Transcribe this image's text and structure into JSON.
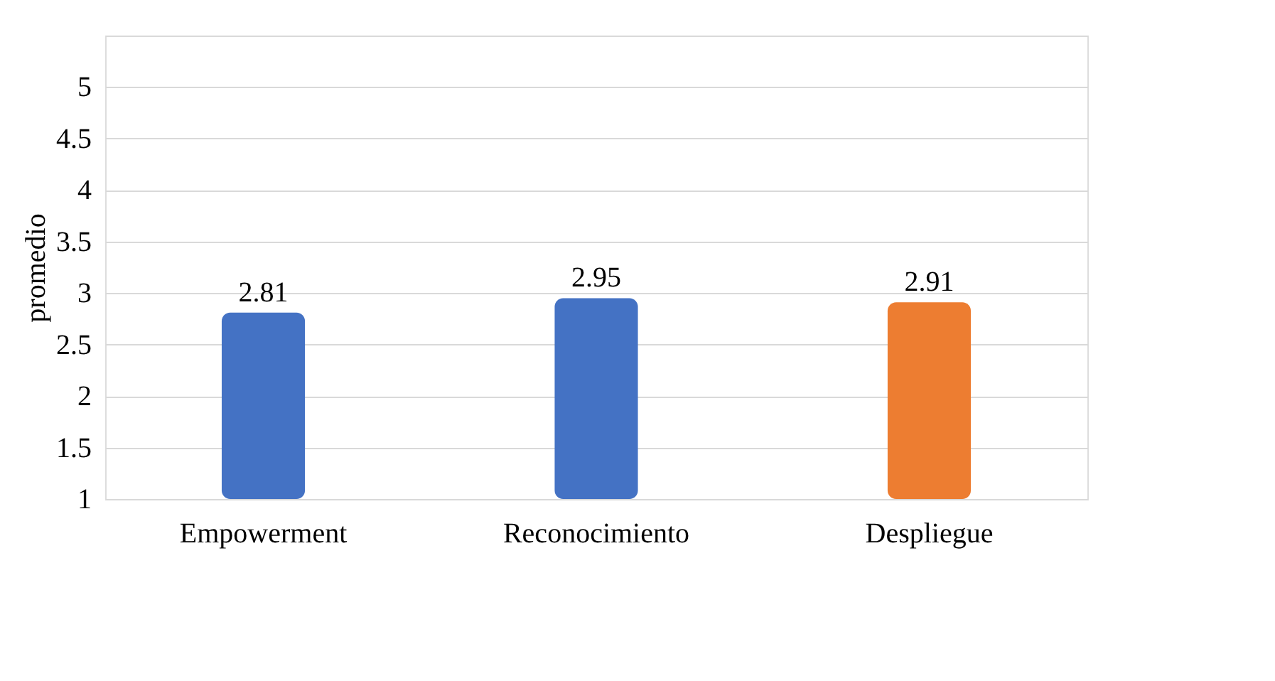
{
  "chart_data": {
    "type": "bar",
    "ylabel": "promedio",
    "categories": [
      "Empowerment",
      "Reconocimiento",
      "Despliegue"
    ],
    "values": [
      2.81,
      2.95,
      2.91
    ],
    "colors": [
      "#4472c4",
      "#4472c4",
      "#ed7d31"
    ],
    "ylim": [
      1,
      5.5
    ],
    "yticks": [
      1,
      1.5,
      2,
      2.5,
      3,
      3.5,
      4,
      4.5,
      5,
      {
        "value": 5.5,
        "label": null
      }
    ],
    "grid": "y",
    "data_labels": true
  }
}
